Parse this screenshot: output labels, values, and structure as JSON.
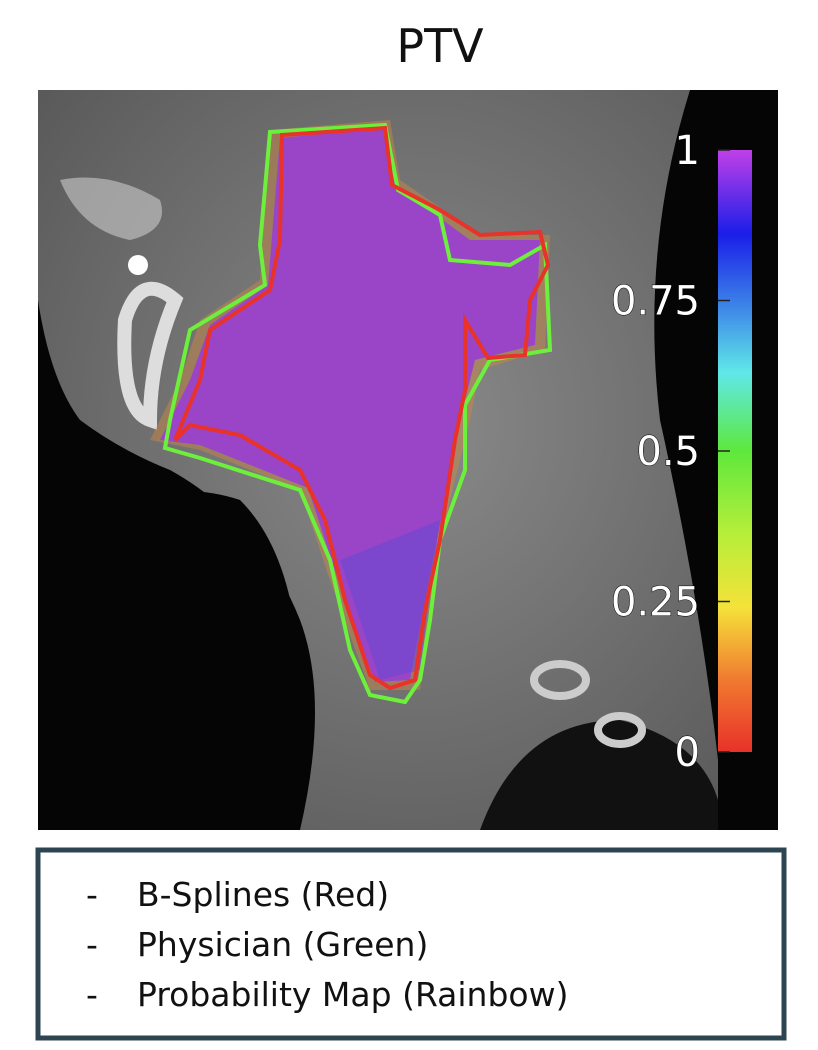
{
  "title": "PTV",
  "colorbar": {
    "lim": [
      0,
      1
    ],
    "ticks": [
      0,
      0.25,
      0.5,
      0.75,
      1
    ]
  },
  "legend": {
    "items": [
      {
        "marker": "-",
        "label": "B-Splines (Red)"
      },
      {
        "marker": "-",
        "label": "Physician (Green)"
      },
      {
        "marker": "-",
        "label": "Probability Map (Rainbow)"
      }
    ]
  }
}
